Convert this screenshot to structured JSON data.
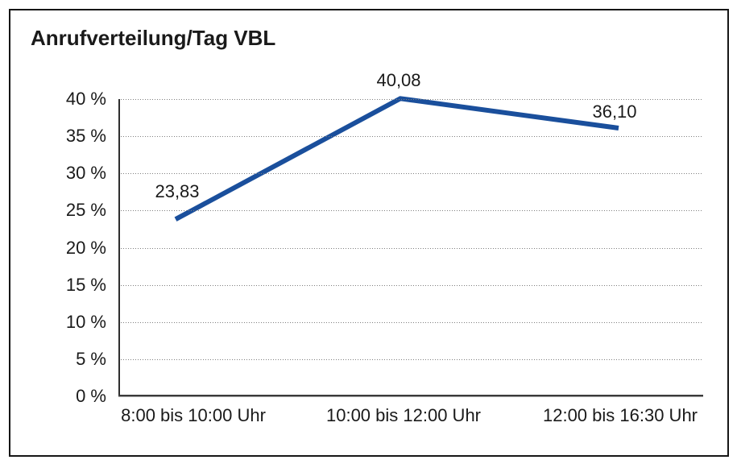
{
  "chart_data": {
    "type": "line",
    "title": "Anrufverteilung/Tag VBL",
    "categories": [
      "8:00 bis 10:00 Uhr",
      "10:00 bis 12:00 Uhr",
      "12:00 bis 16:30 Uhr"
    ],
    "values": [
      23.83,
      40.08,
      36.1
    ],
    "point_labels": [
      "23,83",
      "40,08",
      "36,10"
    ],
    "ylim": [
      0,
      40
    ],
    "ytick_step": 5,
    "ytick_labels": [
      "0 %",
      "5 %",
      "10 %",
      "15 %",
      "20 %",
      "25 %",
      "30 %",
      "35 %",
      "40 %"
    ],
    "xlabel": "",
    "ylabel": "",
    "grid": "horizontal-dotted",
    "legend": "none",
    "line_color": "#1a4f9c",
    "text_color": "#1a1a1a",
    "background_color": "#ffffff",
    "border_color": "#161616"
  }
}
